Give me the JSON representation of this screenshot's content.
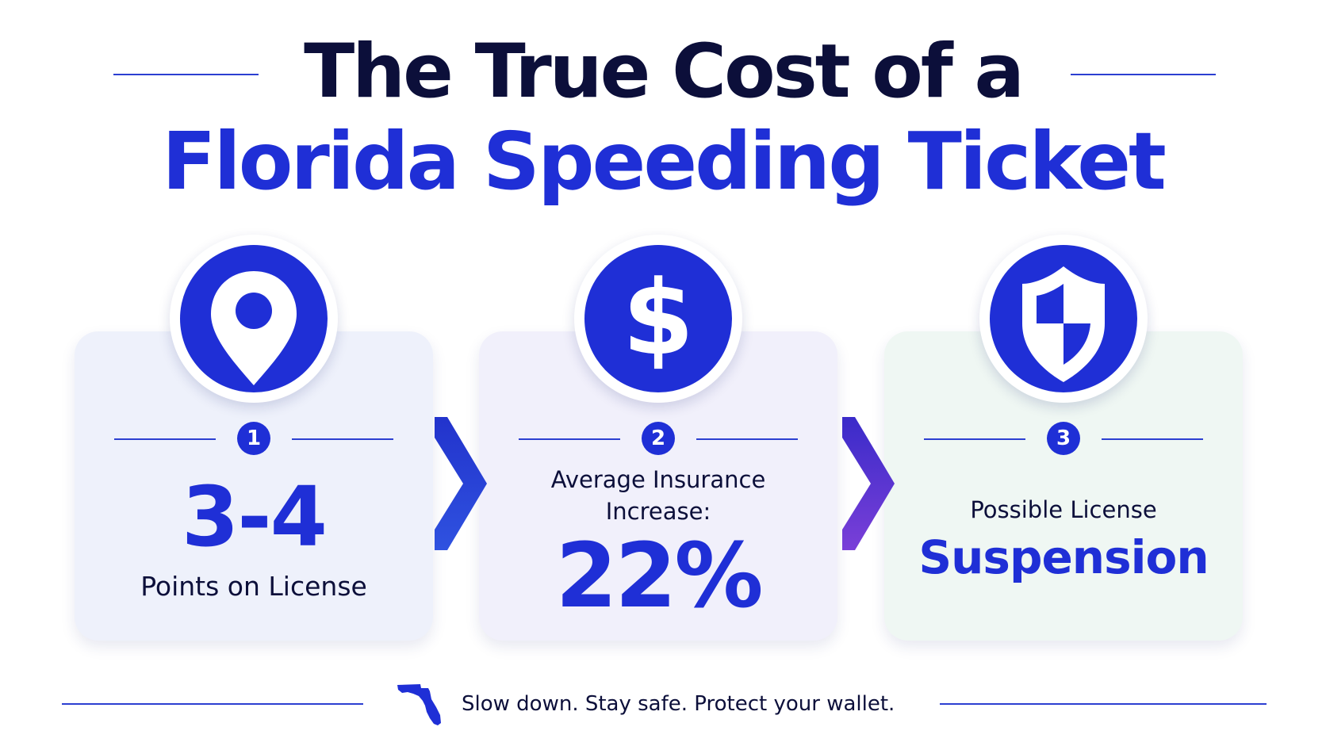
{
  "header": {
    "title_line1": "The True Cost of a",
    "title_line2": "Florida Speeding Ticket"
  },
  "cards": [
    {
      "number": "1",
      "icon": "map-pin-icon",
      "value": "3-4",
      "label": "Points on License"
    },
    {
      "number": "2",
      "icon": "dollar-sign-icon",
      "caption_line1": "Average Insurance",
      "caption_line2": "Increase:",
      "value": "22%"
    },
    {
      "number": "3",
      "icon": "shield-icon",
      "caption": "Possible License",
      "value": "Suspension"
    }
  ],
  "footer": {
    "icon": "florida-state-icon",
    "tagline": "Slow down. Stay safe. Protect your wallet."
  },
  "colors": {
    "primary_blue": "#1f2fd6",
    "dark_navy": "#0c0f3a",
    "card1_bg": "#eef1fb",
    "card2_bg": "#f1f0fb",
    "card3_bg": "#eff7f3"
  }
}
